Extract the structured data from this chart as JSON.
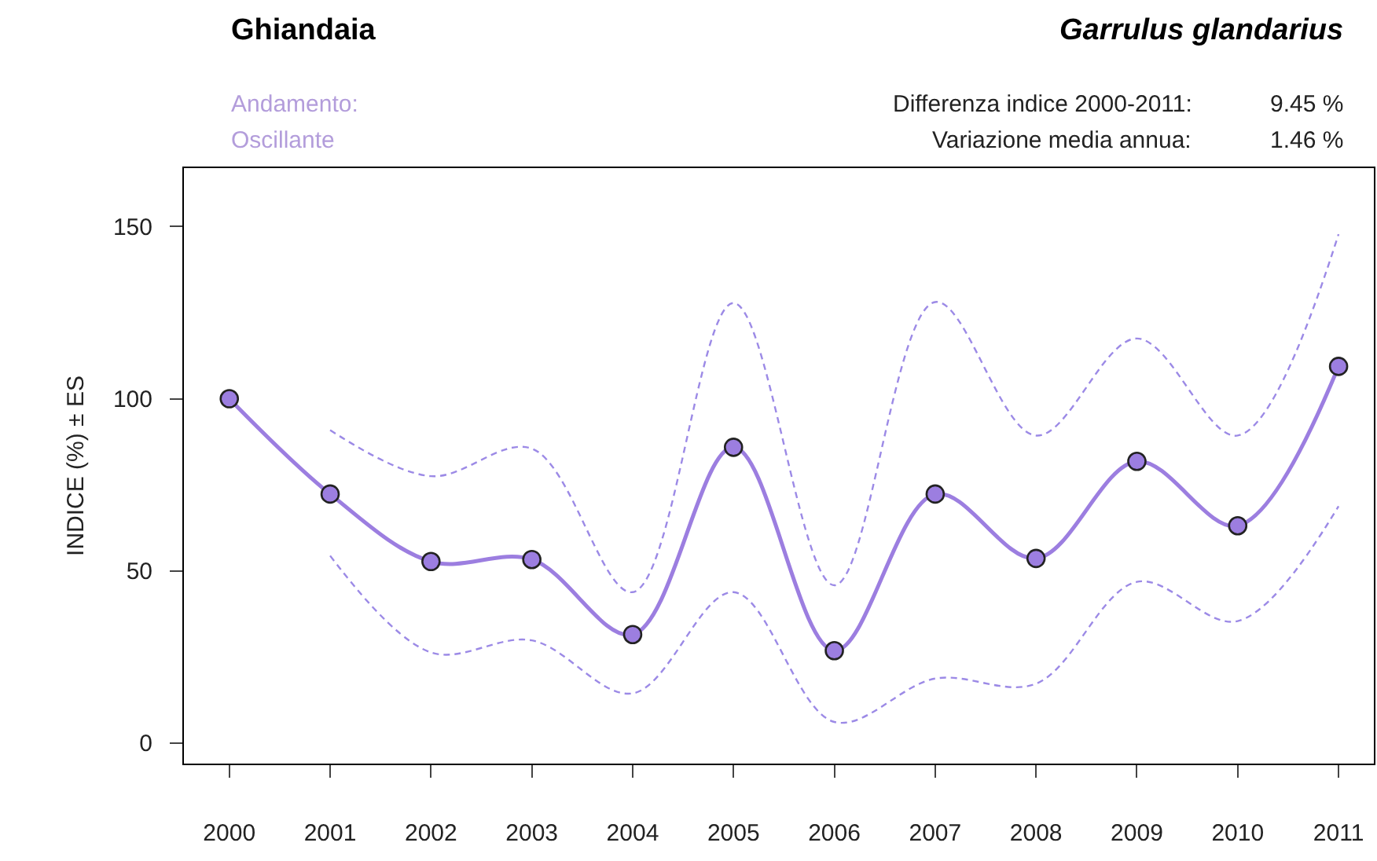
{
  "chart_data": {
    "type": "line",
    "title": "Ghiandaia",
    "subtitle": "Garrulus glandarius",
    "ylabel": "INDICE (%) ± ES",
    "annotations": [
      "Andamento:",
      "Oscillante",
      "Differenza indice 2000-2011:",
      "9.45 %",
      "Variazione media annua:",
      "1.46 %"
    ],
    "x": [
      2000,
      2001,
      2002,
      2003,
      2004,
      2005,
      2006,
      2007,
      2008,
      2009,
      2010,
      2011
    ],
    "series": [
      {
        "color": "#9c7ee0",
        "values": [
          100,
          72.3,
          52.7,
          53.3,
          31.5,
          85.9,
          26.8,
          72.3,
          53.6,
          81.8,
          63.1,
          109.4
        ]
      },
      {
        "color": "#9c8ae6",
        "line_style": "dashed",
        "marker": "none",
        "values": [
          null,
          90.9,
          77.5,
          85.5,
          43.8,
          127.8,
          45.8,
          128.1,
          89.3,
          117.5,
          89.3,
          147.8
        ]
      },
      {
        "color": "#9c8ae6",
        "line_style": "dashed",
        "marker": "none",
        "values": [
          null,
          54.4,
          26.3,
          29.8,
          14.4,
          43.8,
          6.1,
          18.7,
          17.2,
          46.8,
          35.4,
          68.8
        ]
      }
    ],
    "xlim": [
      1999.55,
      2011.35
    ],
    "xticks": [
      2000,
      2001,
      2002,
      2003,
      2004,
      2005,
      2006,
      2007,
      2008,
      2009,
      2010,
      2011
    ],
    "ylim": [
      -6,
      167
    ],
    "yticks": [
      0,
      50,
      100,
      150
    ],
    "marker": "circle",
    "line_style": "solid"
  }
}
